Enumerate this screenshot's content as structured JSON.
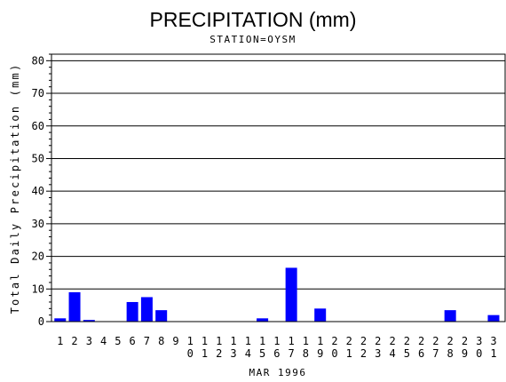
{
  "chart_data": {
    "type": "bar",
    "title": "PRECIPITATION (mm)",
    "subtitle": "STATION=OYSM",
    "xlabel": "MAR 1996",
    "ylabel": "Total Daily Precipitation (mm)",
    "ylim": [
      0,
      82
    ],
    "yticks": [
      0,
      10,
      20,
      30,
      40,
      50,
      60,
      70,
      80
    ],
    "grid": true,
    "bar_color": "#0000ff",
    "categories": [
      "1",
      "2",
      "3",
      "4",
      "5",
      "6",
      "7",
      "8",
      "9",
      "10",
      "11",
      "12",
      "13",
      "14",
      "15",
      "16",
      "17",
      "18",
      "19",
      "20",
      "21",
      "22",
      "23",
      "24",
      "25",
      "26",
      "27",
      "28",
      "29",
      "30",
      "31"
    ],
    "values": [
      1.0,
      9.0,
      0.5,
      0,
      0,
      6.0,
      7.5,
      3.5,
      0,
      0,
      0,
      0,
      0,
      0,
      1.0,
      0,
      16.5,
      0,
      4.0,
      0,
      0,
      0,
      0,
      0,
      0,
      0,
      0,
      3.5,
      0,
      0,
      2.0
    ]
  }
}
